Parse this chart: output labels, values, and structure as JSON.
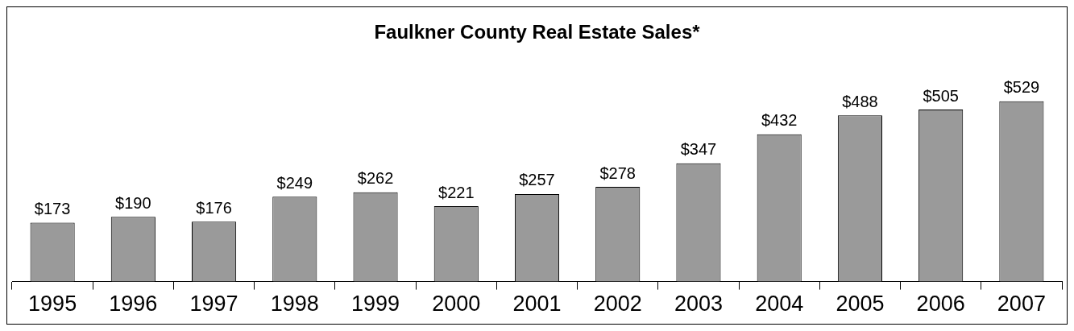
{
  "chart_data": {
    "type": "bar",
    "title": "Faulkner County Real Estate Sales*",
    "categories": [
      "1995",
      "1996",
      "1997",
      "1998",
      "1999",
      "2000",
      "2001",
      "2002",
      "2003",
      "2004",
      "2005",
      "2006",
      "2007"
    ],
    "values": [
      173,
      190,
      176,
      249,
      262,
      221,
      257,
      278,
      347,
      432,
      488,
      505,
      529
    ],
    "value_labels": [
      "$173",
      "$190",
      "$176",
      "$249",
      "$262",
      "$221",
      "$257",
      "$278",
      "$347",
      "$432",
      "$488",
      "$505",
      "$529"
    ],
    "color": "#9a9a9a",
    "grid": false,
    "legend": false
  }
}
